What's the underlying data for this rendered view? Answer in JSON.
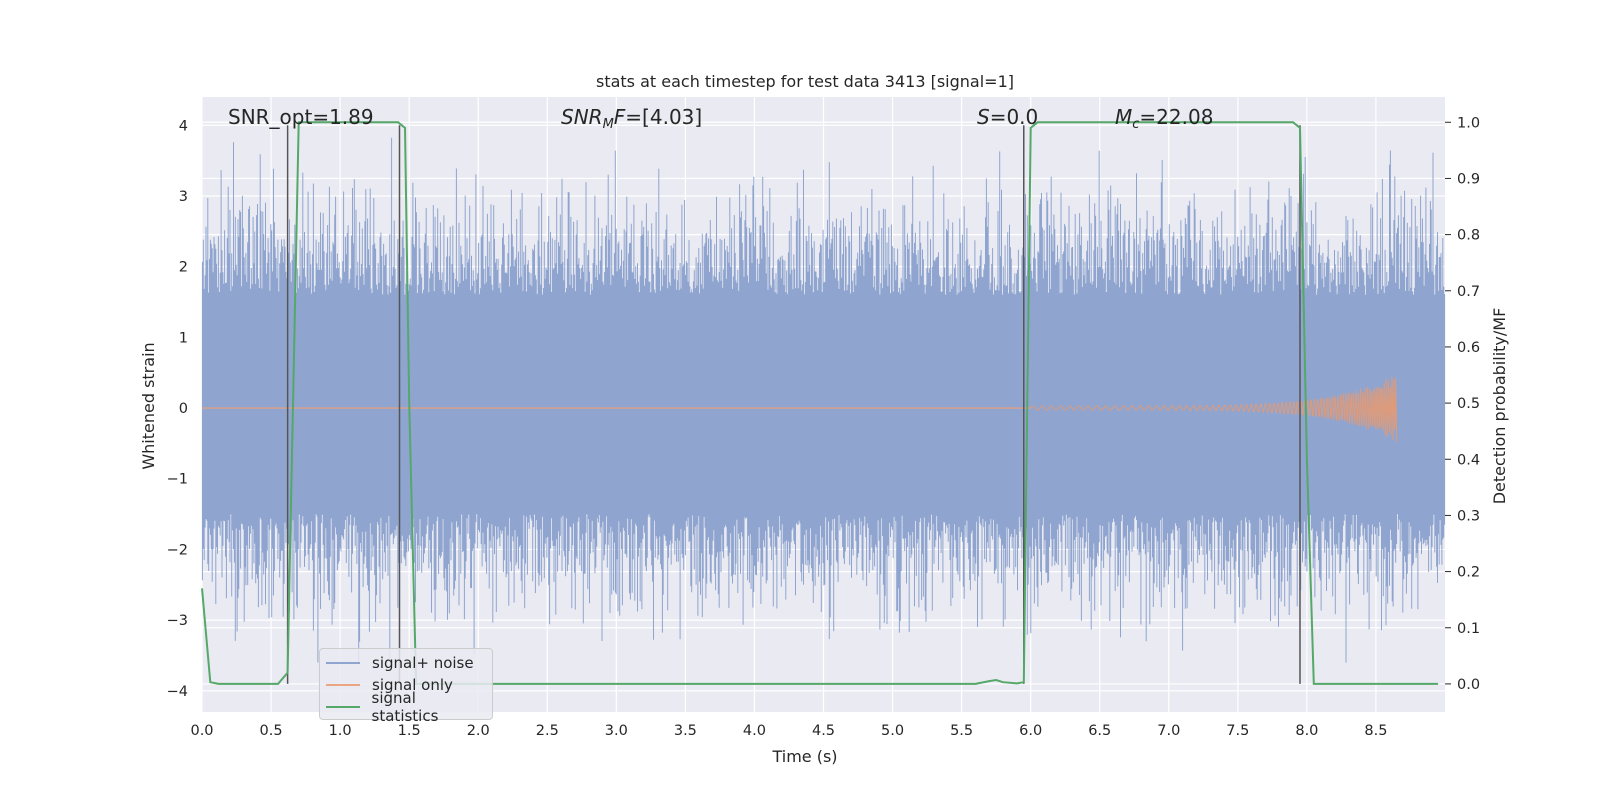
{
  "chart_data": {
    "type": "line",
    "title": "stats at each timestep for test data 3413 [signal=1]",
    "xlabel": "Time (s)",
    "ylabel": "Whitened strain",
    "ylabel_right": "Detection probability/MF",
    "xlim": [
      0.0,
      9.0
    ],
    "ylim": [
      -4.3,
      4.4
    ],
    "ylim_right": [
      -0.05,
      1.045
    ],
    "x_ticks": [
      "0.0",
      "0.5",
      "1.0",
      "1.5",
      "2.0",
      "2.5",
      "3.0",
      "3.5",
      "4.0",
      "4.5",
      "5.0",
      "5.5",
      "6.0",
      "6.5",
      "7.0",
      "7.5",
      "8.0",
      "8.5"
    ],
    "y_ticks": [
      "−4",
      "−3",
      "−2",
      "−1",
      "0",
      "1",
      "2",
      "3",
      "4"
    ],
    "y_right_ticks": [
      "0.0",
      "0.1",
      "0.2",
      "0.3",
      "0.4",
      "0.5",
      "0.6",
      "0.7",
      "0.8",
      "0.9",
      "1.0"
    ],
    "grid": true,
    "legend_position": "lower-left",
    "annotations": {
      "snr_opt": "SNR_opt=1.89",
      "snr_mf_label": "SNR",
      "snr_mf_sub": "M",
      "snr_mf_tail": "F=[4.03]",
      "s_label": "S",
      "s_tail": "=0.0",
      "mc_label": "M",
      "mc_sub": "c",
      "mc_tail": "=22.08"
    },
    "series": [
      {
        "name": "signal+ noise",
        "color": "#8fa5cf",
        "style": "dense noise band",
        "band_core": [
          -1.5,
          1.6
        ],
        "band_peak": [
          -3.6,
          4.0
        ]
      },
      {
        "name": "signal only",
        "color": "#dd8452",
        "style": "chirp",
        "chirp_start": 6.0,
        "chirp_end": 8.65,
        "peak_amplitude": 0.45
      },
      {
        "name": "signal statistics",
        "color": "#55a868",
        "axis": "right",
        "x": [
          0.0,
          0.06,
          0.12,
          0.55,
          0.62,
          0.7,
          1.42,
          1.47,
          1.5,
          1.55,
          5.6,
          5.7,
          5.75,
          5.8,
          5.9,
          5.95,
          6.0,
          6.05,
          7.9,
          7.95,
          8.0,
          8.05,
          8.1,
          8.95
        ],
        "y": [
          0.17,
          0.003,
          0.0,
          0.0,
          0.02,
          1.0,
          1.0,
          0.99,
          0.5,
          0.0,
          0.0,
          0.005,
          0.007,
          0.003,
          0.001,
          0.003,
          0.99,
          1.0,
          1.0,
          0.99,
          0.4,
          0.0,
          0.0,
          0.0
        ]
      }
    ],
    "markers_x": [
      0.62,
      1.43,
      5.95,
      7.95
    ]
  }
}
